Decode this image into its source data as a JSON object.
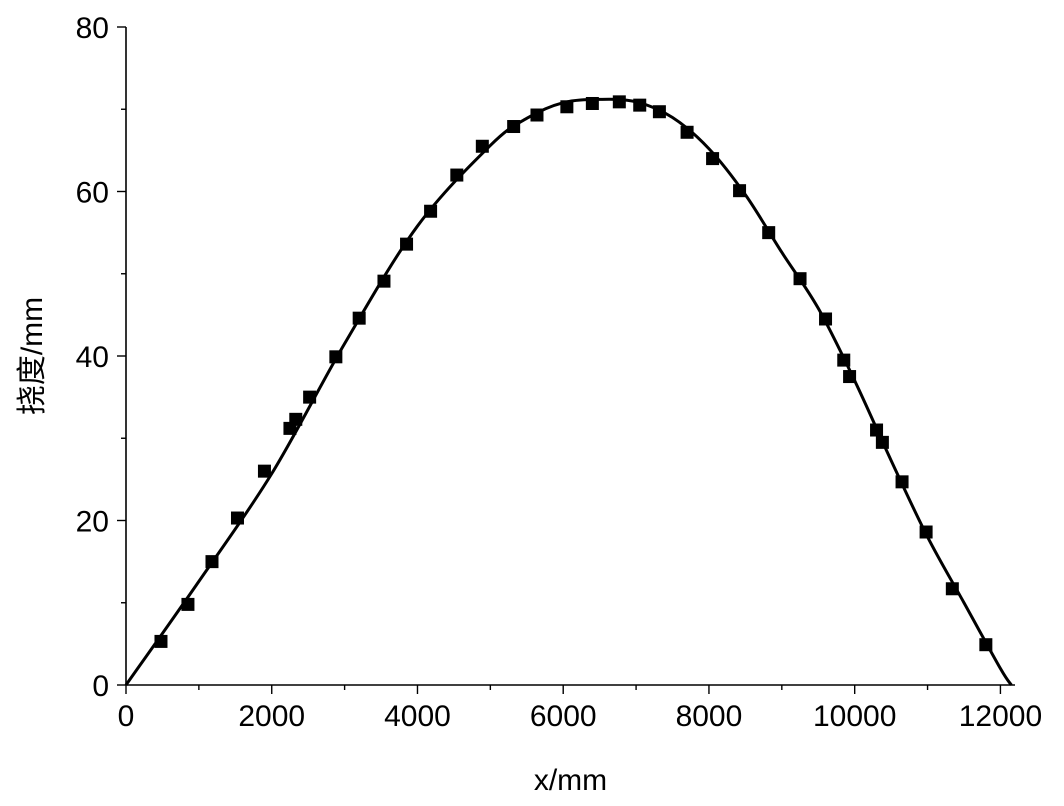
{
  "chart_data": {
    "type": "scatter",
    "title": "",
    "xlabel": "x/mm",
    "ylabel": "挠度/mm",
    "xlim": [
      0,
      12200
    ],
    "ylim": [
      0,
      80
    ],
    "x_ticks": [
      0,
      2000,
      4000,
      6000,
      8000,
      10000,
      12000
    ],
    "y_ticks": [
      0,
      20,
      40,
      60,
      80
    ],
    "grid": false,
    "series": [
      {
        "type": "scatter",
        "marker": "square",
        "color": "#000000",
        "x": [
          480,
          850,
          1180,
          1530,
          1900,
          2250,
          2330,
          2520,
          2880,
          3200,
          3540,
          3850,
          4180,
          4540,
          4890,
          5320,
          5640,
          6050,
          6400,
          6770,
          7050,
          7320,
          7700,
          8050,
          8420,
          8820,
          9250,
          9600,
          9850,
          9930,
          10300,
          10380,
          10650,
          10980,
          11340,
          11800
        ],
        "y": [
          5.3,
          9.8,
          15.0,
          20.3,
          26.0,
          31.2,
          32.3,
          35.0,
          39.9,
          44.6,
          49.1,
          53.6,
          57.6,
          62.0,
          65.5,
          67.9,
          69.3,
          70.3,
          70.7,
          70.9,
          70.5,
          69.7,
          67.2,
          64.0,
          60.1,
          55.0,
          49.4,
          44.5,
          39.5,
          37.5,
          31.0,
          29.5,
          24.7,
          18.6,
          11.7,
          4.9
        ]
      },
      {
        "type": "line",
        "color": "#000000",
        "x": [
          0,
          1000,
          2000,
          3000,
          4000,
          5000,
          5500,
          6000,
          6500,
          7000,
          7500,
          8000,
          8500,
          9000,
          9500,
          10000,
          10500,
          11000,
          11500,
          12000,
          12150
        ],
        "y": [
          0,
          12.6,
          25.7,
          41.5,
          55.8,
          65.6,
          68.9,
          70.8,
          71.2,
          70.9,
          69.0,
          65.2,
          59.6,
          52.6,
          45.8,
          37.0,
          27.3,
          18.0,
          10.0,
          2.0,
          0
        ]
      }
    ]
  }
}
